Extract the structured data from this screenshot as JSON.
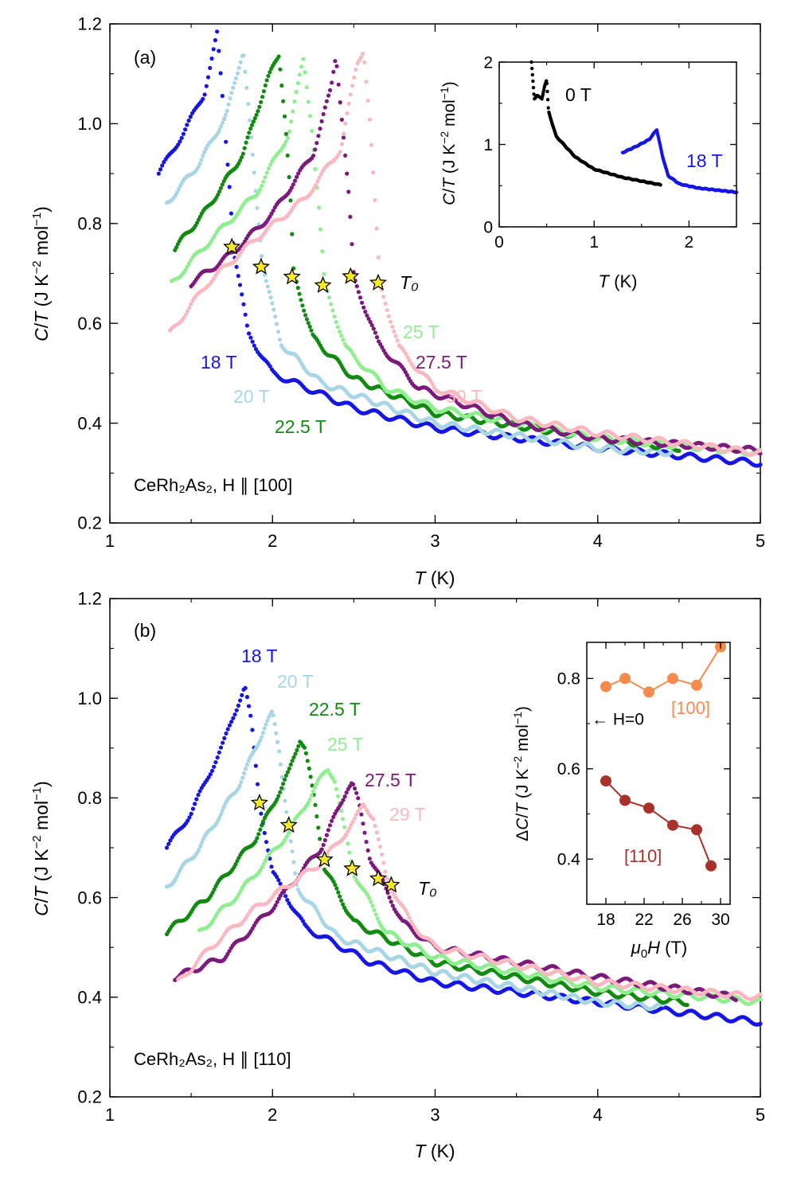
{
  "chart_data": [
    {
      "panel": "(a)",
      "type": "scatter",
      "title": "",
      "xlabel": "T (K)",
      "ylabel": "C/T (J K⁻² mol⁻¹)",
      "xlim": [
        1,
        5
      ],
      "ylim": [
        0.2,
        1.2
      ],
      "xticks": [
        "1",
        "2",
        "3",
        "4",
        "5"
      ],
      "yticks": [
        "0.2",
        "0.4",
        "0.6",
        "0.8",
        "1.0",
        "1.2"
      ],
      "sample_label": "CeRh₂As₂, H ∥ [100]",
      "marker_label": "T₀",
      "series": [
        {
          "name": "18 T",
          "color": "#1515e6",
          "x": [
            1.3,
            1.45,
            1.58,
            1.66,
            1.7,
            1.74,
            1.76,
            1.85,
            2.0,
            2.5,
            3.0,
            4.0,
            5.0
          ],
          "y": [
            0.9,
            0.98,
            1.06,
            1.18,
            1.02,
            0.86,
            0.75,
            0.58,
            0.5,
            0.43,
            0.39,
            0.35,
            0.32
          ]
        },
        {
          "name": "20 T",
          "color": "#a9d6e5",
          "x": [
            1.35,
            1.55,
            1.72,
            1.82,
            1.86,
            1.9,
            1.94,
            2.05,
            2.3,
            3.0,
            4.0,
            4.5
          ],
          "y": [
            0.84,
            0.92,
            1.02,
            1.15,
            1.0,
            0.85,
            0.72,
            0.56,
            0.48,
            0.4,
            0.35,
            0.34
          ]
        },
        {
          "name": "22.5 T",
          "color": "#128a12",
          "x": [
            1.4,
            1.6,
            1.82,
            1.96,
            2.04,
            2.08,
            2.11,
            2.13,
            2.25,
            2.5,
            3.0,
            4.0,
            4.5
          ],
          "y": [
            0.75,
            0.83,
            0.94,
            1.08,
            1.14,
            1.0,
            0.85,
            0.7,
            0.57,
            0.49,
            0.42,
            0.37,
            0.35
          ]
        },
        {
          "name": "25 T",
          "color": "#90ee90",
          "x": [
            1.38,
            1.6,
            1.9,
            2.1,
            2.19,
            2.24,
            2.28,
            2.32,
            2.45,
            2.7,
            3.0,
            4.0,
            5.0
          ],
          "y": [
            0.68,
            0.76,
            0.86,
            0.98,
            1.13,
            1.0,
            0.85,
            0.68,
            0.55,
            0.47,
            0.43,
            0.37,
            0.34
          ]
        },
        {
          "name": "27.5 T",
          "color": "#7c1a7c",
          "x": [
            1.5,
            1.75,
            2.0,
            2.25,
            2.36,
            2.39,
            2.43,
            2.47,
            2.5,
            2.65,
            2.9,
            3.5,
            4.0,
            5.0
          ],
          "y": [
            0.68,
            0.74,
            0.82,
            0.94,
            1.07,
            1.14,
            1.0,
            0.85,
            0.69,
            0.56,
            0.47,
            0.4,
            0.37,
            0.345
          ]
        },
        {
          "name": "30 T",
          "color": "#f9b9c1",
          "x": [
            1.37,
            1.6,
            1.9,
            2.2,
            2.42,
            2.52,
            2.56,
            2.6,
            2.66,
            2.78,
            3.0,
            3.5,
            4.0,
            5.0
          ],
          "y": [
            0.58,
            0.68,
            0.77,
            0.85,
            0.95,
            1.12,
            1.15,
            1.0,
            0.68,
            0.55,
            0.47,
            0.41,
            0.38,
            0.34
          ]
        }
      ],
      "T0": [
        {
          "x": 1.75,
          "y": 0.753
        },
        {
          "x": 1.93,
          "y": 0.713
        },
        {
          "x": 2.12,
          "y": 0.693
        },
        {
          "x": 2.31,
          "y": 0.676
        },
        {
          "x": 2.48,
          "y": 0.694
        },
        {
          "x": 2.65,
          "y": 0.681
        }
      ],
      "inset": {
        "xlabel": "T (K)",
        "ylabel": "C/T (J K⁻² mol⁻¹)",
        "xlim": [
          0,
          2.5
        ],
        "ylim": [
          0,
          2
        ],
        "xticks": [
          "0",
          "1",
          "2"
        ],
        "yticks": [
          "0",
          "1",
          "2"
        ],
        "series": [
          {
            "name": "0 T",
            "color": "#000000",
            "x": [
              0.34,
              0.37,
              0.4,
              0.45,
              0.48,
              0.5,
              0.52,
              0.6,
              0.8,
              1.0,
              1.3,
              1.7
            ],
            "y": [
              2.0,
              1.55,
              1.6,
              1.55,
              1.72,
              1.78,
              1.4,
              1.1,
              0.85,
              0.7,
              0.6,
              0.51
            ]
          },
          {
            "name": "18 T",
            "color": "#1515e6",
            "x": [
              1.3,
              1.45,
              1.58,
              1.66,
              1.72,
              1.78,
              1.9,
              2.1,
              2.5
            ],
            "y": [
              0.9,
              0.98,
              1.06,
              1.18,
              0.86,
              0.62,
              0.52,
              0.47,
              0.42
            ]
          }
        ]
      }
    },
    {
      "panel": "(b)",
      "type": "scatter",
      "title": "",
      "xlabel": "T (K)",
      "ylabel": "C/T (J K⁻² mol⁻¹)",
      "xlim": [
        1,
        5
      ],
      "ylim": [
        0.2,
        1.2
      ],
      "xticks": [
        "1",
        "2",
        "3",
        "4",
        "5"
      ],
      "yticks": [
        "0.2",
        "0.4",
        "0.6",
        "0.8",
        "1.0",
        "1.2"
      ],
      "sample_label": "CeRh₂As₂, H ∥ [110]",
      "marker_label": "T₀",
      "series": [
        {
          "name": "18 T",
          "color": "#1515e6",
          "x": [
            1.35,
            1.5,
            1.7,
            1.8,
            1.83,
            1.87,
            1.92,
            2.0,
            2.2,
            2.6,
            3.0,
            4.0,
            5.0
          ],
          "y": [
            0.7,
            0.77,
            0.91,
            1.0,
            1.025,
            0.95,
            0.79,
            0.65,
            0.54,
            0.47,
            0.43,
            0.39,
            0.35
          ]
        },
        {
          "name": "20 T",
          "color": "#a9d6e5",
          "x": [
            1.35,
            1.55,
            1.8,
            1.95,
            2.0,
            2.04,
            2.09,
            2.15,
            2.4,
            3.0,
            4.0,
            4.4
          ],
          "y": [
            0.62,
            0.7,
            0.83,
            0.94,
            0.97,
            0.9,
            0.76,
            0.62,
            0.52,
            0.45,
            0.39,
            0.38
          ]
        },
        {
          "name": "22.5 T",
          "color": "#128a12",
          "x": [
            1.35,
            1.6,
            1.9,
            2.1,
            2.17,
            2.2,
            2.26,
            2.32,
            2.5,
            3.0,
            4.0,
            4.55
          ],
          "y": [
            0.53,
            0.6,
            0.72,
            0.85,
            0.92,
            0.9,
            0.79,
            0.66,
            0.55,
            0.47,
            0.41,
            0.39
          ]
        },
        {
          "name": "25 T",
          "color": "#90ee90",
          "x": [
            1.55,
            1.8,
            2.1,
            2.3,
            2.34,
            2.38,
            2.44,
            2.5,
            2.7,
            3.0,
            4.0,
            5.0
          ],
          "y": [
            0.53,
            0.61,
            0.73,
            0.84,
            0.86,
            0.84,
            0.74,
            0.65,
            0.53,
            0.48,
            0.42,
            0.39
          ]
        },
        {
          "name": "27.5 T",
          "color": "#7c1a7c",
          "x": [
            1.4,
            1.7,
            2.0,
            2.3,
            2.46,
            2.49,
            2.53,
            2.6,
            2.8,
            3.0,
            4.0,
            4.85
          ],
          "y": [
            0.44,
            0.48,
            0.58,
            0.7,
            0.82,
            0.83,
            0.79,
            0.68,
            0.55,
            0.5,
            0.44,
            0.4
          ]
        },
        {
          "name": "29 T",
          "color": "#f9b9c1",
          "x": [
            1.42,
            1.62,
            1.9,
            2.3,
            2.5,
            2.56,
            2.62,
            2.7,
            2.85,
            3.0,
            4.0,
            5.0
          ],
          "y": [
            0.43,
            0.5,
            0.58,
            0.67,
            0.75,
            0.79,
            0.76,
            0.64,
            0.55,
            0.5,
            0.43,
            0.4
          ]
        }
      ],
      "T0": [
        {
          "x": 1.92,
          "y": 0.79
        },
        {
          "x": 2.1,
          "y": 0.745
        },
        {
          "x": 2.32,
          "y": 0.676
        },
        {
          "x": 2.49,
          "y": 0.658
        },
        {
          "x": 2.65,
          "y": 0.638
        },
        {
          "x": 2.73,
          "y": 0.625
        }
      ],
      "inset": {
        "xlabel": "μ₀H (T)",
        "ylabel": "ΔC/T (J K⁻² mol⁻¹)",
        "xlim": [
          16,
          31
        ],
        "ylim": [
          0.3,
          0.88
        ],
        "xticks": [
          "18",
          "22",
          "26",
          "30"
        ],
        "yticks": [
          "0.4",
          "0.6",
          "0.8"
        ],
        "annotation": "← H=0",
        "annotation_y": 0.71,
        "series": [
          {
            "name": "[100]",
            "color": "#f58a4f",
            "x": [
              18,
              20,
              22.5,
              25,
              27.5,
              30
            ],
            "y": [
              0.782,
              0.8,
              0.77,
              0.8,
              0.785,
              0.87
            ]
          },
          {
            "name": "[110]",
            "color": "#a8322b",
            "x": [
              18,
              20,
              22.5,
              25,
              27.5,
              29
            ],
            "y": [
              0.573,
              0.53,
              0.513,
              0.475,
              0.465,
              0.385
            ]
          }
        ]
      }
    }
  ]
}
